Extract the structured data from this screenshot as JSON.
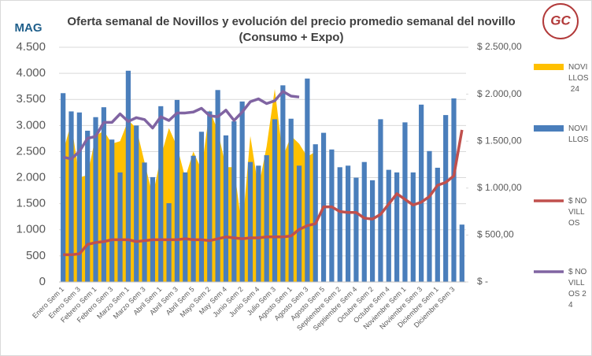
{
  "chart_data": {
    "type": "combo",
    "title": "Oferta semanal de Novillos y evolución del precio promedio semanal del novillo",
    "subtitle": "(Consumo + Expo)",
    "logo_left": "MAG",
    "logo_right": "GC",
    "categories": [
      "Enero Sem 1",
      null,
      "Enero Sem 3",
      null,
      "Febrero Sem 1",
      null,
      "Febrero Sem 3",
      null,
      "Marzo Sem 1",
      null,
      "Marzo Sem 3",
      null,
      "Abril Sem 1",
      null,
      "Abril Sem 3",
      null,
      "Abril Sem 5",
      null,
      "Mayo Sem 2",
      null,
      "May Sem 4",
      null,
      "Junio Sem 2",
      null,
      "Junio Sem 4",
      null,
      "Julio Sem 3",
      null,
      "Agosto Sem 1",
      null,
      "Agosto Sem 3",
      null,
      "Agosto Sem 5",
      null,
      "Septiembre Sem 2",
      null,
      "Septiembre Sem 4",
      null,
      "Octubre Sem 2",
      null,
      "Octubre Sem 4",
      null,
      "Noviembre Sem 1",
      null,
      "Noviembre Sem 3",
      null,
      "Diciembre Sem 1",
      null,
      "Diciembre Sem 3",
      null
    ],
    "series": [
      {
        "name": "NOVILLOS 24",
        "kind": "area",
        "color": "#ffc000",
        "values": [
          2500,
          3050,
          2000,
          2050,
          2800,
          2900,
          2650,
          2700,
          3100,
          2950,
          2300,
          1650,
          2400,
          2950,
          2600,
          2000,
          2500,
          2150,
          3300,
          2900,
          2200,
          2200,
          1000,
          2800,
          1800,
          2600,
          3700,
          2400,
          2800,
          2650,
          2400,
          2500,
          null,
          null,
          null,
          null,
          null,
          null,
          null,
          null,
          null,
          null,
          null,
          null,
          null,
          null,
          null,
          null,
          null,
          null
        ]
      },
      {
        "name": "NOVILLOS",
        "kind": "bar",
        "color": "#4a7ebb",
        "values": [
          3620,
          3270,
          3250,
          2900,
          3160,
          3350,
          2730,
          2100,
          4050,
          3000,
          2290,
          2010,
          3370,
          1510,
          3490,
          2100,
          2420,
          2880,
          3270,
          3680,
          2810,
          3080,
          3460,
          2300,
          2230,
          2430,
          3120,
          3770,
          3130,
          2230,
          3900,
          2640,
          2860,
          2540,
          2200,
          2230,
          2000,
          2300,
          1950,
          3120,
          2150,
          2100,
          3060,
          2100,
          3400,
          2510,
          2190,
          3200,
          3520,
          1100
        ]
      },
      {
        "name": "$ NOVILLOS",
        "kind": "line",
        "axis": "y2",
        "color": "#c0504d",
        "values": [
          290,
          290,
          300,
          400,
          420,
          430,
          450,
          450,
          450,
          430,
          440,
          450,
          450,
          450,
          450,
          460,
          450,
          450,
          440,
          460,
          480,
          470,
          460,
          470,
          470,
          480,
          480,
          480,
          490,
          560,
          600,
          620,
          800,
          800,
          750,
          740,
          740,
          680,
          670,
          720,
          830,
          940,
          880,
          820,
          850,
          910,
          1030,
          1060,
          1130,
          1620
        ]
      },
      {
        "name": "$ NOVILLOS 24",
        "kind": "line",
        "axis": "y2",
        "color": "#8064a2",
        "values": [
          1330,
          1310,
          1390,
          1530,
          1550,
          1700,
          1700,
          1790,
          1710,
          1750,
          1730,
          1640,
          1760,
          1720,
          1800,
          1800,
          1810,
          1850,
          1770,
          1760,
          1830,
          1720,
          1810,
          1920,
          1950,
          1900,
          1930,
          2030,
          1980,
          1970,
          null,
          null,
          null,
          null,
          null,
          null,
          null,
          null,
          null,
          null,
          null,
          null,
          null,
          null,
          null,
          null,
          null,
          null,
          null,
          null
        ]
      }
    ],
    "ylim": [
      0,
      4500
    ],
    "yticks": [
      0,
      500,
      {
        "value": 1000,
        "label": "1.000"
      },
      {
        "value": 1500,
        "label": "1.500"
      },
      {
        "value": 2000,
        "label": "2.000"
      },
      {
        "value": 2500,
        "label": "2.500"
      },
      {
        "value": 3000,
        "label": "3.000"
      },
      {
        "value": 3500,
        "label": "3.500"
      },
      {
        "value": 4000,
        "label": "4.000"
      },
      {
        "value": 4500,
        "label": "4.500"
      }
    ],
    "y2lim": [
      0,
      2500
    ],
    "y2ticks": [
      {
        "value": 0,
        "label": "$ -"
      },
      {
        "value": 500,
        "label": "$ 500,00"
      },
      {
        "value": 1000,
        "label": "$ 1.000,00"
      },
      {
        "value": 1500,
        "label": "$ 1.500,00"
      },
      {
        "value": 2000,
        "label": "$ 2.000,00"
      },
      {
        "value": 2500,
        "label": "$ 2.500,00"
      }
    ],
    "grid": true
  }
}
